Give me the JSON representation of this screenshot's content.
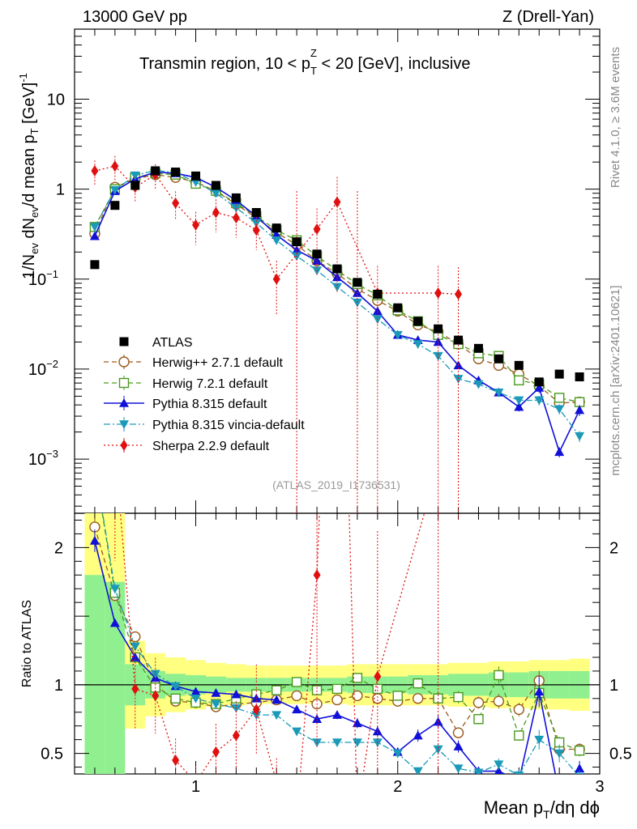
{
  "chart_data": {
    "type": "scatter",
    "header_left": "13000 GeV pp",
    "header_right": "Z (Drell-Yan)",
    "title_main": "Transmin region, 10 < p",
    "title_sub": "T",
    "title_sup": "Z",
    "title_tail": " < 20 [GeV], inclusive",
    "analysis_label": "(ATLAS_2019_I1736531)",
    "side_label_top": "Rivet 4.1.0, ≥ 3.6M events",
    "side_label_bottom": "mcplots.cern.ch [arXiv:2401.10621]",
    "ylabel": "1/N_ev dN_ev/d mean p_T [GeV]^-1",
    "ylabel_parts": {
      "a": "1/N",
      "b": "ev",
      "c": " dN",
      "d": "ev",
      "e": "/d mean p",
      "f": "T",
      "g": " [GeV]",
      "h": "-1"
    },
    "ratio_ylabel": "Ratio to ATLAS",
    "xlabel_parts": {
      "a": "Mean p",
      "b": "T",
      "c": "/dη dϕ"
    },
    "xlim": [
      0.4,
      3.0
    ],
    "ylim": [
      0.00025,
      60
    ],
    "ratio_ylim": [
      0.35,
      2.25
    ],
    "x_ticks": [
      1,
      2,
      3
    ],
    "x_tick_labels": [
      "1",
      "2",
      "3"
    ],
    "y_ticks": [
      0.001,
      0.01,
      0.1,
      1,
      10
    ],
    "y_tick_labels": [
      {
        "base": "10",
        "exp": "−3"
      },
      {
        "base": "10",
        "exp": "−2"
      },
      {
        "base": "10",
        "exp": "−1"
      },
      {
        "base": "1",
        "exp": ""
      },
      {
        "base": "10",
        "exp": ""
      }
    ],
    "ratio_ticks": [
      0.5,
      1,
      2
    ],
    "ratio_tick_labels": [
      "0.5",
      "1",
      "2"
    ],
    "x": [
      0.5,
      0.6,
      0.7,
      0.8,
      0.9,
      1.0,
      1.1,
      1.2,
      1.3,
      1.4,
      1.5,
      1.6,
      1.7,
      1.8,
      1.9,
      2.0,
      2.1,
      2.2,
      2.3,
      2.4,
      2.5,
      2.6,
      2.7,
      2.8,
      2.9
    ],
    "data_band_outer": [
      1.4,
      1.3,
      0.32,
      0.23,
      0.2,
      0.18,
      0.16,
      0.15,
      0.14,
      0.14,
      0.14,
      0.14,
      0.14,
      0.15,
      0.15,
      0.15,
      0.15,
      0.15,
      0.16,
      0.16,
      0.17,
      0.17,
      0.18,
      0.18,
      0.19
    ],
    "data_band_inner": [
      0.8,
      0.75,
      0.15,
      0.1,
      0.08,
      0.07,
      0.06,
      0.05,
      0.05,
      0.05,
      0.05,
      0.05,
      0.05,
      0.06,
      0.06,
      0.06,
      0.07,
      0.07,
      0.08,
      0.08,
      0.09,
      0.09,
      0.1,
      0.1,
      0.1
    ],
    "series": [
      {
        "name": "ATLAS",
        "color": "#000000",
        "marker": "square-filled",
        "line": "none",
        "values": [
          0.145,
          0.66,
          1.1,
          1.6,
          1.55,
          1.4,
          1.1,
          0.8,
          0.55,
          0.37,
          0.26,
          0.19,
          0.13,
          0.092,
          0.068,
          0.048,
          0.034,
          0.028,
          0.021,
          0.017,
          0.013,
          0.011,
          0.0072,
          0.0088,
          0.0082
        ],
        "ratio": [
          1,
          1,
          1,
          1,
          1,
          1,
          1,
          1,
          1,
          1,
          1,
          1,
          1,
          1,
          1,
          1,
          1,
          1,
          1,
          1,
          1,
          1,
          1,
          1,
          1
        ],
        "err": [
          0,
          0,
          0,
          0,
          0,
          0,
          0,
          0,
          0,
          0,
          0,
          0,
          0,
          0,
          0,
          0,
          0,
          0,
          0,
          0,
          0,
          0,
          0,
          0,
          0
        ]
      },
      {
        "name": "Herwig++ 2.7.1 default",
        "color": "#9a5a1c",
        "marker": "circle-open",
        "line": "dashed",
        "values": [
          0.32,
          1.05,
          1.3,
          1.45,
          1.35,
          1.2,
          0.95,
          0.68,
          0.48,
          0.33,
          0.24,
          0.16,
          0.115,
          0.078,
          0.058,
          0.044,
          0.031,
          0.026,
          0.019,
          0.013,
          0.011,
          0.0088,
          0.0065,
          0.0042,
          0.0043
        ],
        "ratio": [
          2.15,
          1.65,
          1.35,
          1.0,
          0.88,
          0.87,
          0.84,
          0.86,
          0.87,
          0.89,
          0.92,
          0.86,
          0.89,
          0.92,
          0.9,
          0.88,
          0.9,
          0.9,
          0.65,
          0.87,
          0.88,
          0.82,
          1.03,
          0.53,
          0.53
        ],
        "err": [
          0.03,
          0.02,
          0.02,
          0.02,
          0.02,
          0.02,
          0.02,
          0.02,
          0.02,
          0.02,
          0.03,
          0.03,
          0.03,
          0.03,
          0.03,
          0.03,
          0.04,
          0.04,
          0.05,
          0.05,
          0.06,
          0.06,
          0.07,
          0.07,
          0.08
        ]
      },
      {
        "name": "Herwig 7.2.1 default",
        "color": "#4a9a1e",
        "marker": "square-open",
        "line": "dashed",
        "values": [
          0.38,
          1.0,
          1.35,
          1.5,
          1.45,
          1.15,
          0.96,
          0.7,
          0.5,
          0.35,
          0.27,
          0.18,
          0.125,
          0.088,
          0.066,
          0.045,
          0.034,
          0.024,
          0.019,
          0.015,
          0.014,
          0.0075,
          0.0068,
          0.0048,
          0.0043
        ],
        "ratio": [
          2.6,
          1.67,
          1.2,
          0.98,
          0.9,
          0.87,
          0.86,
          0.9,
          0.93,
          0.96,
          1.02,
          0.96,
          0.97,
          1.05,
          0.97,
          0.92,
          1.01,
          0.9,
          0.91,
          0.75,
          1.07,
          0.63,
          0.94,
          0.58,
          0.52
        ],
        "err": [
          0.03,
          0.02,
          0.02,
          0.02,
          0.02,
          0.02,
          0.02,
          0.02,
          0.02,
          0.02,
          0.03,
          0.03,
          0.03,
          0.03,
          0.03,
          0.03,
          0.04,
          0.04,
          0.05,
          0.05,
          0.06,
          0.06,
          0.07,
          0.07,
          0.08
        ]
      },
      {
        "name": "Pythia 8.315 default",
        "color": "#1010d8",
        "marker": "triangle-up-filled",
        "line": "solid",
        "values": [
          0.3,
          0.95,
          1.3,
          1.55,
          1.5,
          1.35,
          1.05,
          0.75,
          0.5,
          0.31,
          0.21,
          0.16,
          0.105,
          0.07,
          0.044,
          0.024,
          0.021,
          0.02,
          0.011,
          0.0075,
          0.0055,
          0.0038,
          0.0062,
          0.0012,
          0.0035
        ],
        "ratio": [
          2.05,
          1.45,
          1.2,
          1.05,
          0.99,
          0.95,
          0.94,
          0.93,
          0.9,
          0.89,
          0.82,
          0.75,
          0.78,
          0.72,
          0.66,
          0.51,
          0.63,
          0.73,
          0.55,
          0.37,
          0.37,
          0.3,
          0.95,
          0.2,
          0.39
        ],
        "err": [
          0.04,
          0.02,
          0.02,
          0.02,
          0.02,
          0.02,
          0.02,
          0.02,
          0.02,
          0.02,
          0.03,
          0.03,
          0.04,
          0.05,
          0.06,
          0.06,
          0.07,
          0.07,
          0.08,
          0.09,
          0.1,
          0.11,
          0.12,
          0.13,
          0.14
        ]
      },
      {
        "name": "Pythia 8.315 vincia-default",
        "color": "#1a9ab8",
        "marker": "triangle-down-filled",
        "line": "dashdot",
        "values": [
          0.38,
          0.98,
          1.42,
          1.62,
          1.52,
          1.2,
          0.9,
          0.62,
          0.42,
          0.27,
          0.18,
          0.125,
          0.082,
          0.055,
          0.036,
          0.024,
          0.019,
          0.014,
          0.0078,
          0.0068,
          0.0055,
          0.0045,
          0.0045,
          0.0036,
          0.0018
        ],
        "ratio": [
          2.6,
          1.7,
          1.28,
          1.08,
          0.99,
          0.9,
          0.86,
          0.83,
          0.78,
          0.78,
          0.66,
          0.58,
          0.58,
          0.58,
          0.58,
          0.5,
          0.37,
          0.53,
          0.39,
          0.36,
          0.42,
          0.34,
          0.6,
          0.5,
          0.33
        ],
        "err": [
          0.04,
          0.02,
          0.02,
          0.02,
          0.02,
          0.02,
          0.02,
          0.02,
          0.02,
          0.02,
          0.03,
          0.03,
          0.04,
          0.05,
          0.06,
          0.06,
          0.07,
          0.07,
          0.08,
          0.09,
          0.1,
          0.11,
          0.12,
          0.13,
          0.14
        ]
      },
      {
        "name": "Sherpa 2.2.9 default",
        "color": "#e01010",
        "marker": "diamond-filled",
        "line": "dotted",
        "values": [
          1.6,
          1.8,
          1.05,
          1.45,
          0.7,
          0.4,
          0.55,
          0.48,
          0.35,
          0.1,
          null,
          0.36,
          0.72,
          null,
          0.07,
          null,
          null,
          0.07,
          0.068,
          null,
          null,
          null,
          null,
          null,
          null
        ],
        "ratio": [
          11.0,
          2.72,
          0.97,
          0.92,
          0.45,
          0.29,
          0.51,
          0.63,
          0.82,
          0.29,
          0.05,
          1.8,
          5.5,
          0.05,
          1.06,
          null,
          null,
          2.6,
          3.2,
          null,
          null,
          null,
          null,
          null,
          null
        ],
        "err": [
          0.3,
          0.3,
          0.3,
          0.3,
          0.35,
          0.4,
          0.4,
          0.4,
          0.4,
          0.6,
          1.0,
          0.7,
          0.9,
          1.0,
          1.0,
          0,
          0,
          1.0,
          1.0,
          0,
          0,
          0,
          0,
          0,
          0
        ]
      }
    ]
  }
}
